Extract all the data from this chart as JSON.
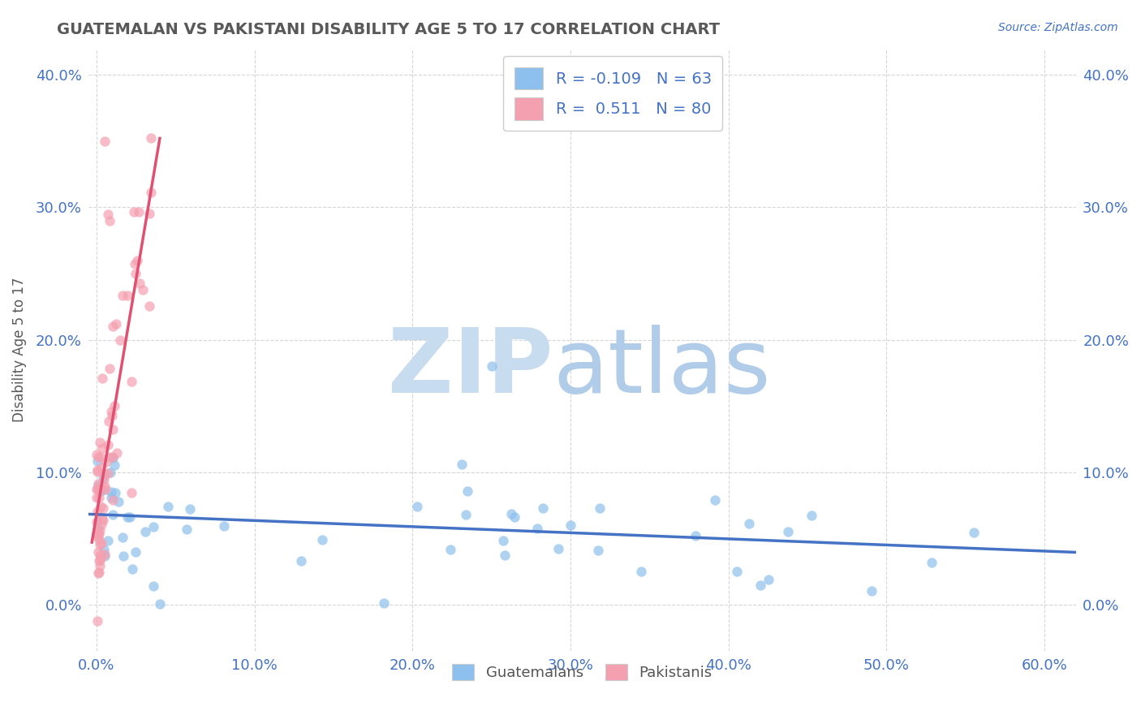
{
  "title": "GUATEMALAN VS PAKISTANI DISABILITY AGE 5 TO 17 CORRELATION CHART",
  "source": "Source: ZipAtlas.com",
  "ylabel": "Disability Age 5 to 17",
  "xlim": [
    -0.5,
    62
  ],
  "ylim": [
    -3.5,
    42
  ],
  "x_ticks": [
    0,
    10,
    20,
    30,
    40,
    50,
    60
  ],
  "y_ticks": [
    0,
    10,
    20,
    30,
    40
  ],
  "legend_r1": "-0.109",
  "legend_n1": "63",
  "legend_r2": "0.511",
  "legend_n2": "80",
  "guatemalan_color": "#8DC0EC",
  "pakistani_color": "#F4A0B0",
  "trend_guatemalan_color": "#4472C4",
  "trend_pakistani_color": "#E05070",
  "watermark_zip_color": "#C8DCF0",
  "watermark_atlas_color": "#B0CCE8",
  "background_color": "#FFFFFF",
  "grid_color": "#CCCCCC",
  "title_color": "#595959",
  "axis_label_color": "#595959",
  "tick_color": "#4472C4",
  "legend_text_color": "#4472C4",
  "seed": 42
}
